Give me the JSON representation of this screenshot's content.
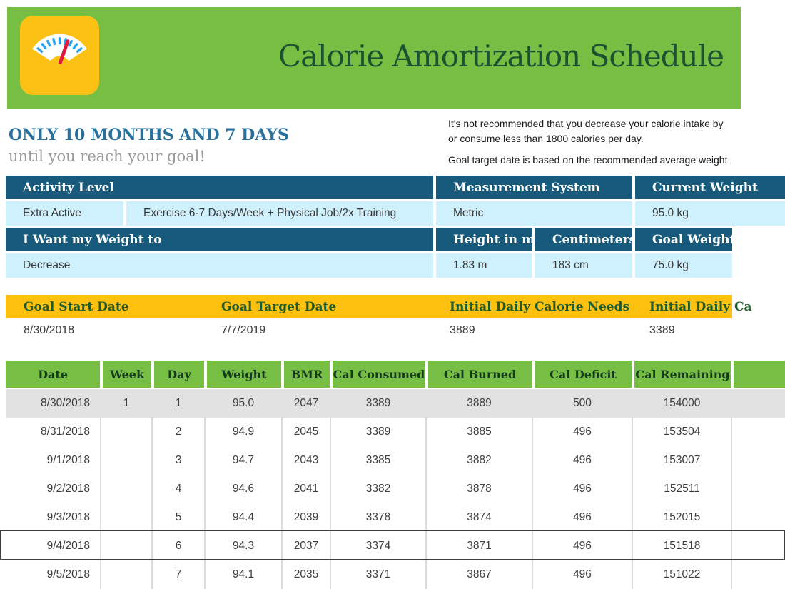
{
  "app": {
    "title": "Calorie Amortization Schedule",
    "icon": "weight-scale"
  },
  "countdown": {
    "headline": "ONLY 10 MONTHS AND 7 DAYS",
    "subline": "until you reach your goal!"
  },
  "notes": {
    "line1": "It's not recommended that you decrease your calorie intake by",
    "line2": "or consume less than 1800 calories per day.",
    "line3": "Goal target date is based on the recommended average weight"
  },
  "settings": {
    "activity_level_label": "Activity Level",
    "measurement_system_label": "Measurement System",
    "current_weight_label": "Current Weight",
    "activity_level": "Extra Active",
    "activity_description": "Exercise 6-7 Days/Week + Physical Job/2x Training",
    "measurement_system": "Metric",
    "current_weight": "95.0 kg",
    "weight_direction_label": "I Want my Weight to",
    "height_label": "Height in m",
    "centimeters_label": "Centimeters",
    "goal_weight_label": "Goal Weight",
    "weight_direction": "Decrease",
    "height": "1.83 m",
    "centimeters": "183 cm",
    "goal_weight": "75.0 kg"
  },
  "goal_summary": {
    "labels": [
      "Goal Start Date",
      "Goal Target Date",
      "Initial Daily Calorie Needs",
      "Initial Daily Ca"
    ],
    "values": [
      "8/30/2018",
      "7/7/2019",
      "3889",
      "3389"
    ]
  },
  "schedule_table": {
    "columns": [
      "Date",
      "Week",
      "Day",
      "Weight",
      "BMR",
      "Cal Consumed",
      "Cal Burned",
      "Cal Deficit",
      "Cal Remaining"
    ],
    "rows": [
      [
        "8/30/2018",
        "1",
        "1",
        "95.0",
        "2047",
        "3389",
        "3889",
        "500",
        "154000"
      ],
      [
        "8/31/2018",
        "",
        "2",
        "94.9",
        "2045",
        "3389",
        "3885",
        "496",
        "153504"
      ],
      [
        "9/1/2018",
        "",
        "3",
        "94.7",
        "2043",
        "3385",
        "3882",
        "496",
        "153007"
      ],
      [
        "9/2/2018",
        "",
        "4",
        "94.6",
        "2041",
        "3382",
        "3878",
        "496",
        "152511"
      ],
      [
        "9/3/2018",
        "",
        "5",
        "94.4",
        "2039",
        "3378",
        "3874",
        "496",
        "152015"
      ],
      [
        "9/4/2018",
        "",
        "6",
        "94.3",
        "2037",
        "3374",
        "3871",
        "496",
        "151518"
      ],
      [
        "9/5/2018",
        "",
        "7",
        "94.1",
        "2035",
        "3371",
        "3867",
        "496",
        "151022"
      ]
    ],
    "selected_row_index": 5
  },
  "colors": {
    "banner_green": "#77bf43",
    "icon_yellow": "#fcc115",
    "tick_blue": "#2ba3e8",
    "needle_red": "#e11b3f",
    "header_blue": "#175a7c",
    "light_blue": "#cff0fd",
    "band_yellow": "#fec110",
    "table_header_green": "#76bf44",
    "row_gray": "#e2e2e2",
    "selected_border": "#3f3f3f"
  }
}
